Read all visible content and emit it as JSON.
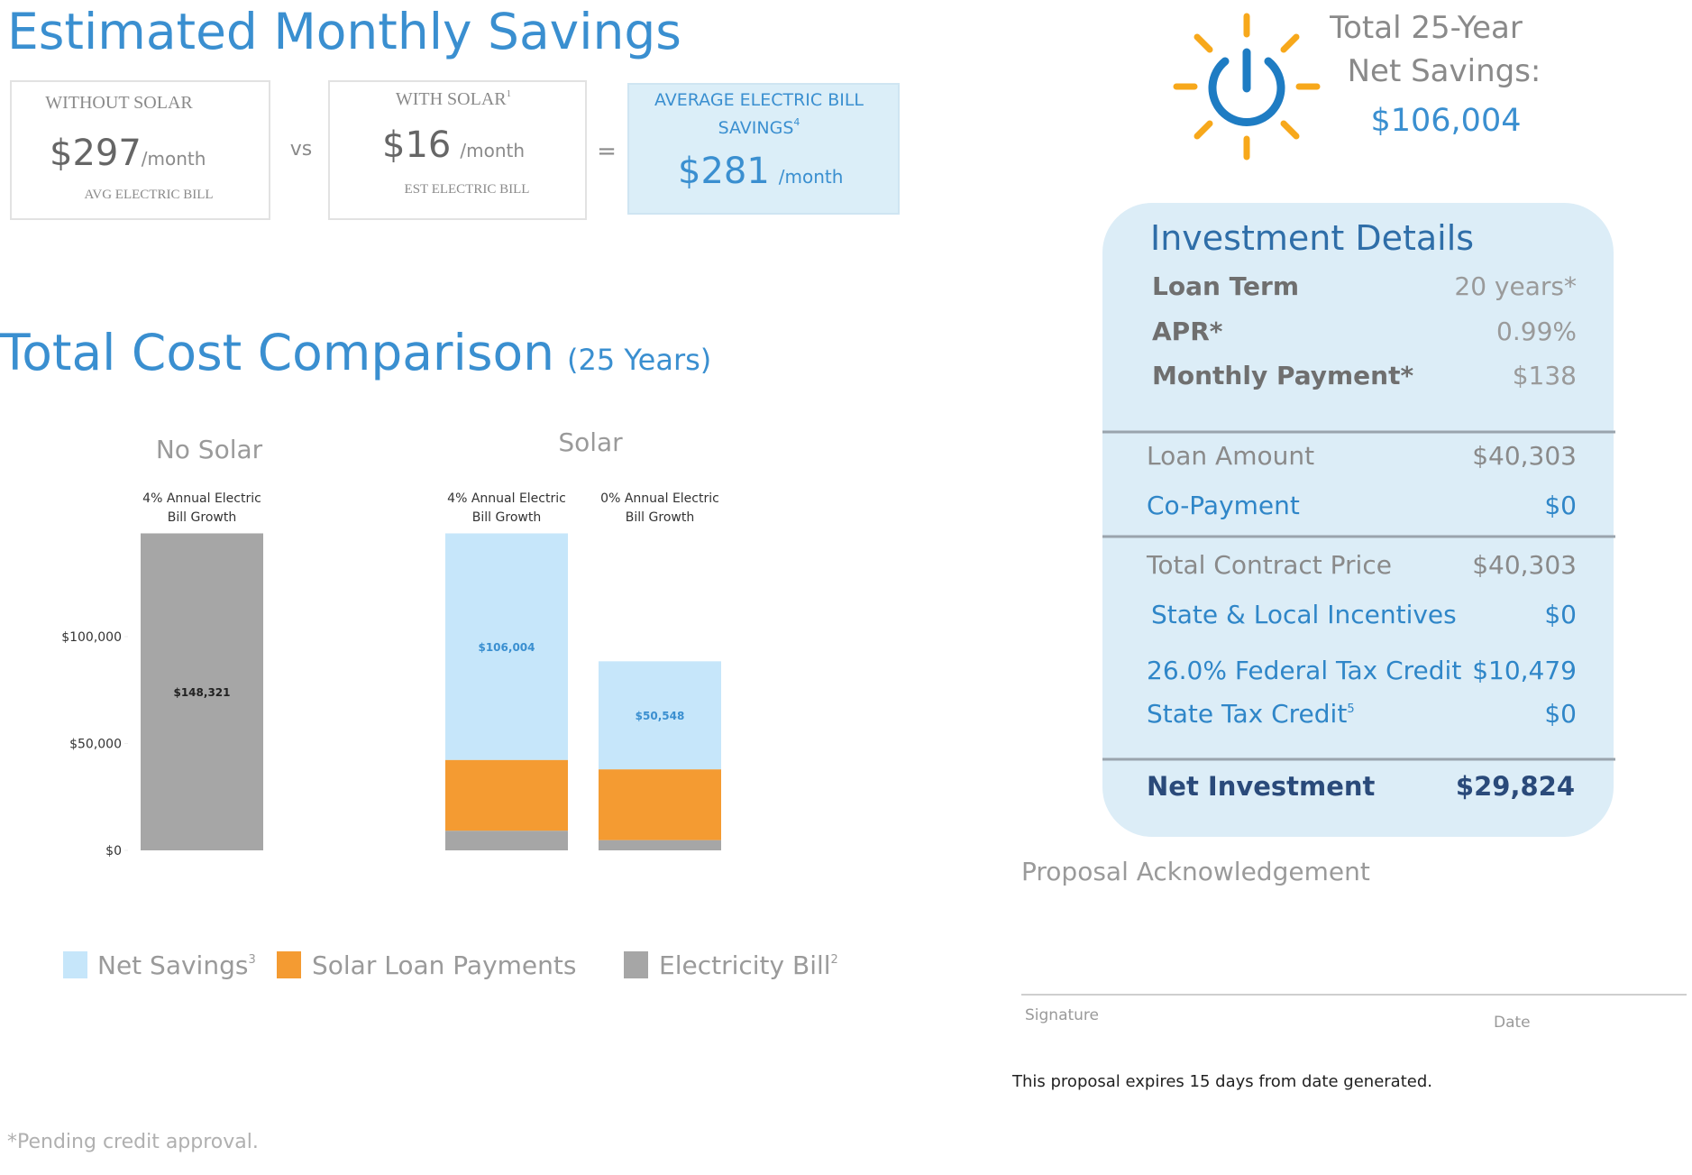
{
  "savings": {
    "title": "Estimated Monthly Savings",
    "without": {
      "label": "WITHOUT SOLAR",
      "amount": "$297",
      "unit": "/month",
      "note": "AVG ELECTRIC BILL"
    },
    "vs": "vs",
    "with": {
      "label": "WITH SOLAR",
      "sup": "1",
      "amount": "$16",
      "unit": "/month",
      "note": "EST ELECTRIC BILL"
    },
    "equals": "=",
    "average": {
      "label_lines": [
        "AVERAGE ELECTRIC BILL",
        "SAVINGS"
      ],
      "sup": "4",
      "amount": "$281",
      "unit": "/month"
    }
  },
  "total": {
    "lines": [
      "Total 25-Year",
      "Net Savings:"
    ],
    "amount": "$106,004"
  },
  "investment": {
    "title": "Investment Details",
    "groups": [
      [
        [
          "Loan Term",
          "20 years*"
        ],
        [
          "APR*",
          "0.99%"
        ],
        [
          "Monthly Payment*",
          "$138"
        ]
      ],
      [
        [
          "Loan Amount",
          "$40,303"
        ],
        [
          "Co-Payment",
          "$0"
        ]
      ],
      [
        [
          "Total Contract Price",
          "$40,303"
        ],
        [
          "State & Local Incentives",
          "$0"
        ],
        [
          "26.0% Federal Tax Credit",
          "$10,479"
        ],
        [
          "State Tax Credit",
          "$0"
        ]
      ]
    ],
    "state_tax_sup": "5",
    "net": [
      "Net Investment",
      "$29,824"
    ]
  },
  "comparison": {
    "title": "Total Cost Comparison",
    "subtitle": "(25 Years)",
    "chart": {
      "type": "stacked-bar",
      "groups": [
        "No Solar",
        "Solar"
      ],
      "categories": [
        [
          "4% Annual Electric",
          "Bill Growth"
        ],
        [
          "4% Annual Electric",
          "Bill Growth"
        ],
        [
          "0% Annual Electric",
          "Bill Growth"
        ]
      ],
      "series": [
        {
          "name": "Net Savings",
          "sup": "3",
          "color": "#c6e6fa",
          "values": [
            null,
            106004,
            50548
          ],
          "value_labels": [
            null,
            "$106,004",
            "$50,548"
          ]
        },
        {
          "name": "Solar Loan Payments",
          "color": "#f49b32",
          "values": [
            null,
            33120,
            33120
          ]
        },
        {
          "name": "Electricity Bill",
          "sup": "2",
          "color": "#a6a6a6",
          "values": [
            148321,
            9197,
            4800
          ],
          "value_labels": [
            "$148,321",
            null,
            null
          ]
        }
      ],
      "ylim": [
        0,
        150000
      ],
      "yticks": [
        {
          "value": 0,
          "label": "$0"
        },
        {
          "value": 50000,
          "label": "$50,000"
        },
        {
          "value": 100000,
          "label": "$100,000"
        }
      ]
    }
  },
  "acknowledgement": {
    "title": "Proposal Acknowledgement",
    "signature": "Signature",
    "date": "Date",
    "expiry": "This proposal expires 15 days from date generated."
  },
  "footnote": "*Pending credit approval."
}
